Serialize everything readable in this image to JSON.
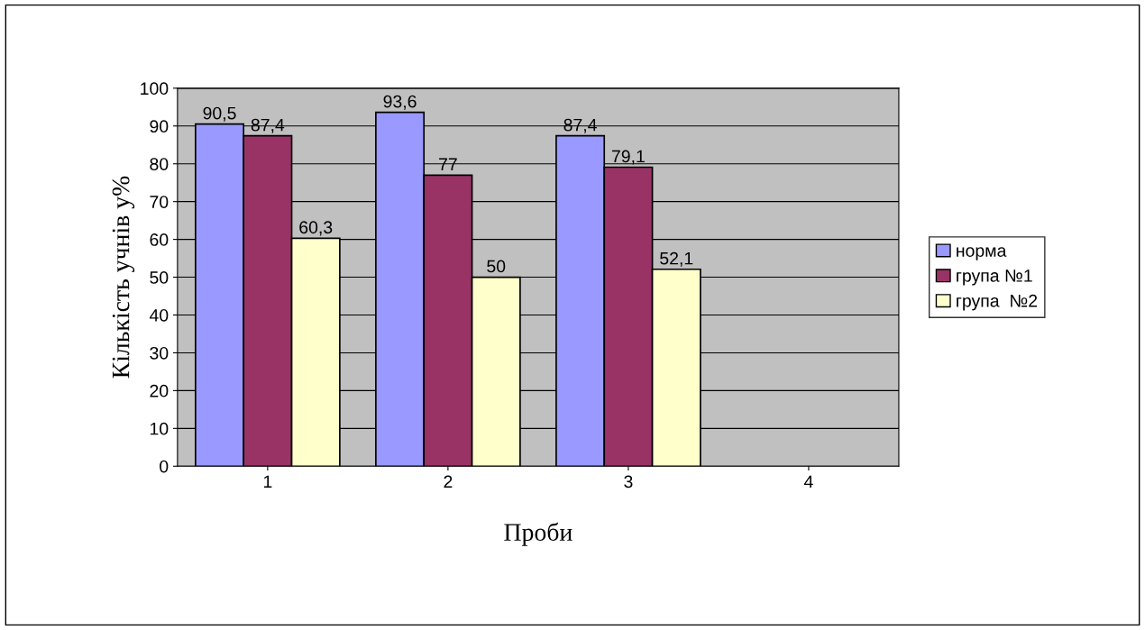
{
  "chart_data": {
    "type": "bar",
    "xlabel": "Проби",
    "ylabel": "Кількість учнів у%",
    "categories": [
      "1",
      "2",
      "3",
      "4"
    ],
    "series": [
      {
        "name": "норма",
        "color": "#9999ff",
        "values": [
          90.5,
          93.6,
          87.4,
          null
        ],
        "value_labels": [
          "90,5",
          "93,6",
          "87,4",
          null
        ]
      },
      {
        "name": "група №1",
        "color": "#993366",
        "values": [
          87.4,
          77,
          79.1,
          null
        ],
        "value_labels": [
          "87,4",
          "77",
          "79,1",
          null
        ]
      },
      {
        "name": "група  №2",
        "color": "#ffffcc",
        "values": [
          60.3,
          50,
          52.1,
          null
        ],
        "value_labels": [
          "60,3",
          "50",
          "52,1",
          null
        ]
      }
    ],
    "ylim": [
      0,
      100
    ],
    "yticks": [
      0,
      10,
      20,
      30,
      40,
      50,
      60,
      70,
      80,
      90,
      100
    ],
    "grid": "y",
    "legend": "right"
  }
}
